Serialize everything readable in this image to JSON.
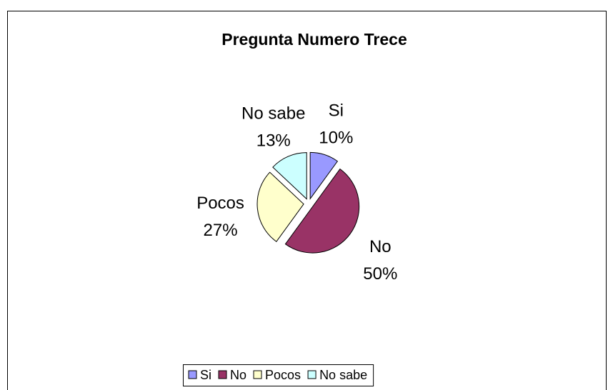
{
  "chart_data": {
    "type": "pie",
    "title": "Pregunta Numero Trece",
    "categories": [
      "Si",
      "No",
      "Pocos",
      "No sabe"
    ],
    "values": [
      10,
      50,
      27,
      13
    ],
    "value_labels": [
      "10%",
      "50%",
      "27%",
      "13%"
    ],
    "colors": [
      "#9999ff",
      "#993366",
      "#ffffcc",
      "#ccffff"
    ],
    "legend": "bottom"
  }
}
